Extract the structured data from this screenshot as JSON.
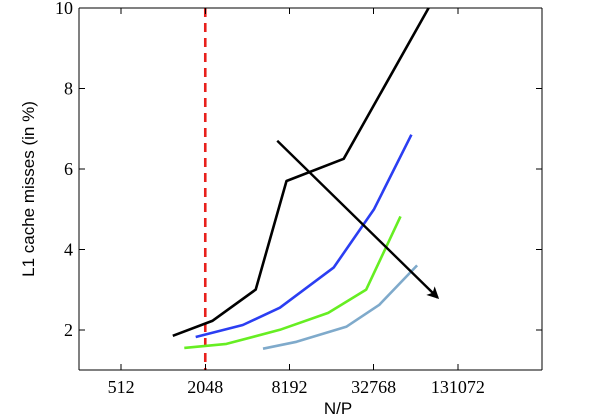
{
  "chart_data": {
    "type": "line",
    "title": "",
    "xlabel": "N/P",
    "ylabel": "L1 cache misses (in %)",
    "x_scale": "log2",
    "xlim": [
      256,
      524288
    ],
    "ylim": [
      1,
      10
    ],
    "x_ticks": [
      512,
      2048,
      8192,
      32768,
      131072
    ],
    "x_tick_labels": [
      "512",
      "2048",
      "8192",
      "32768",
      "131072"
    ],
    "y_ticks": [
      2,
      4,
      6,
      8,
      10
    ],
    "y_tick_labels": [
      "2",
      "4",
      "6",
      "8",
      "10"
    ],
    "grid": false,
    "legend": "none",
    "series": [
      {
        "color": "#000000",
        "points": [
          {
            "x": 1200,
            "y": 1.85
          },
          {
            "x": 2300,
            "y": 2.22
          },
          {
            "x": 4700,
            "y": 3.0
          },
          {
            "x": 7800,
            "y": 5.7
          },
          {
            "x": 20000,
            "y": 6.25
          },
          {
            "x": 81000,
            "y": 10.0
          }
        ]
      },
      {
        "color": "#2b3ef2",
        "points": [
          {
            "x": 1750,
            "y": 1.82
          },
          {
            "x": 3800,
            "y": 2.12
          },
          {
            "x": 7000,
            "y": 2.55
          },
          {
            "x": 17000,
            "y": 3.55
          },
          {
            "x": 33000,
            "y": 5.0
          },
          {
            "x": 61000,
            "y": 6.85
          }
        ]
      },
      {
        "color": "#66ee22",
        "points": [
          {
            "x": 1450,
            "y": 1.55
          },
          {
            "x": 2900,
            "y": 1.65
          },
          {
            "x": 7000,
            "y": 2.0
          },
          {
            "x": 15500,
            "y": 2.42
          },
          {
            "x": 29000,
            "y": 3.0
          },
          {
            "x": 51000,
            "y": 4.82
          }
        ]
      },
      {
        "color": "#7faacb",
        "points": [
          {
            "x": 5300,
            "y": 1.53
          },
          {
            "x": 9200,
            "y": 1.7
          },
          {
            "x": 21000,
            "y": 2.08
          },
          {
            "x": 36000,
            "y": 2.62
          },
          {
            "x": 67000,
            "y": 3.6
          }
        ]
      }
    ],
    "annotations": [
      {
        "type": "vertical-dashed-line",
        "x": 2048,
        "color": "#e8201c"
      },
      {
        "type": "arrow",
        "color": "#000000",
        "from": {
          "x": 6700,
          "y": 6.7
        },
        "to": {
          "x": 94000,
          "y": 2.8
        }
      }
    ]
  }
}
